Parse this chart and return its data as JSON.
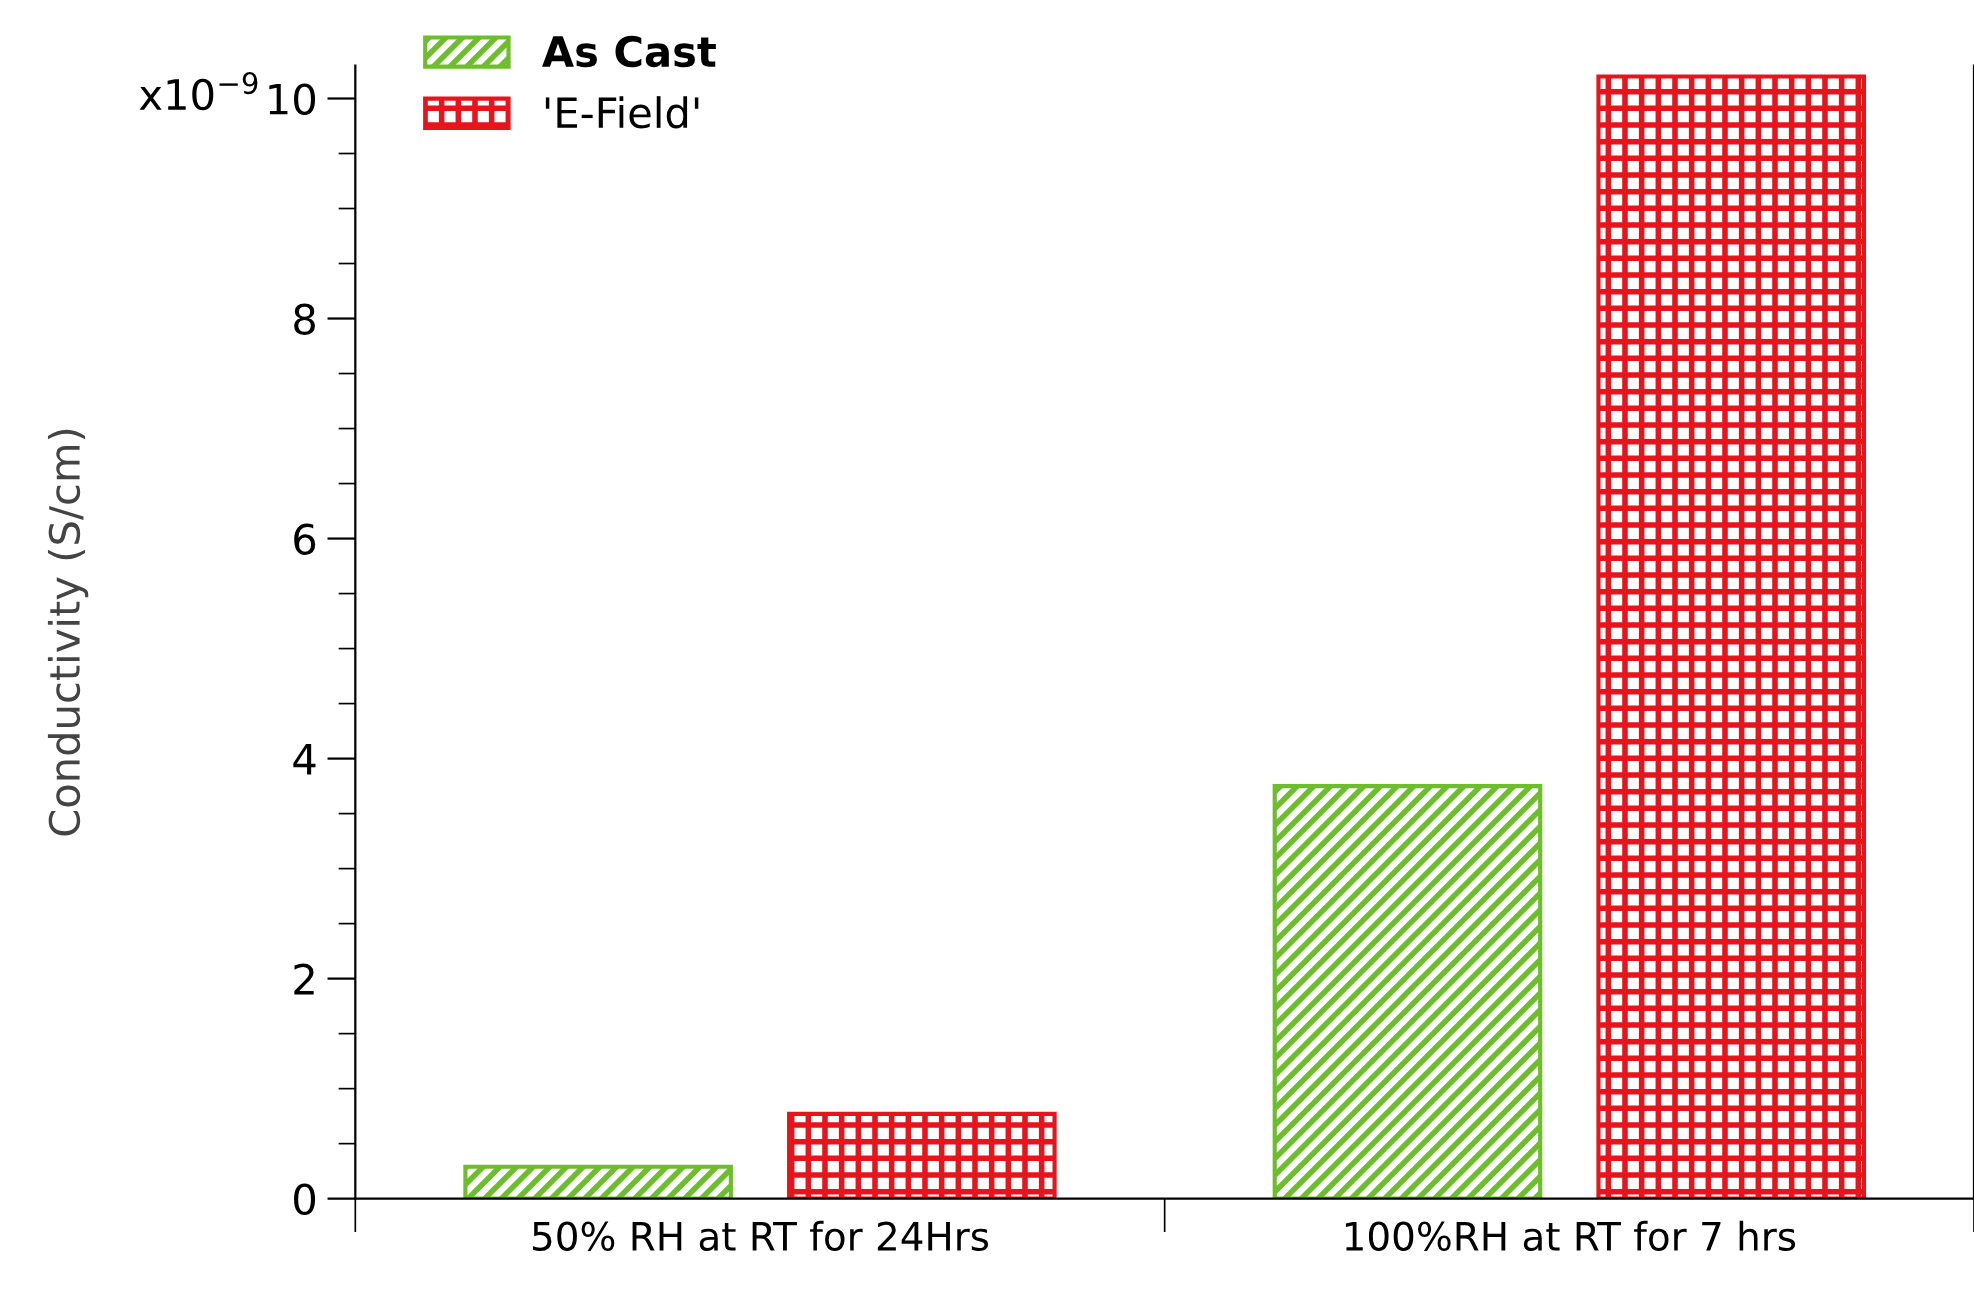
{
  "chart_data": {
    "type": "bar",
    "ylabel": "Conductivity (S/cm)",
    "categories": [
      "50% RH at RT for 24Hrs",
      "100%RH at RT for 7 hrs"
    ],
    "series": [
      {
        "name": "As Cast",
        "color": "#6cbf2a",
        "values": [
          0.29,
          3.75
        ]
      },
      {
        "name": "'E-Field'",
        "color": "#e8141c",
        "values": [
          0.77,
          10.2
        ]
      }
    ],
    "ylim": [
      0,
      10.3
    ],
    "yticks": [
      0,
      2,
      4,
      6,
      8,
      10
    ],
    "annotations": [
      "x10$^{−9}$"
    ],
    "grid": false,
    "legend": "top left"
  }
}
